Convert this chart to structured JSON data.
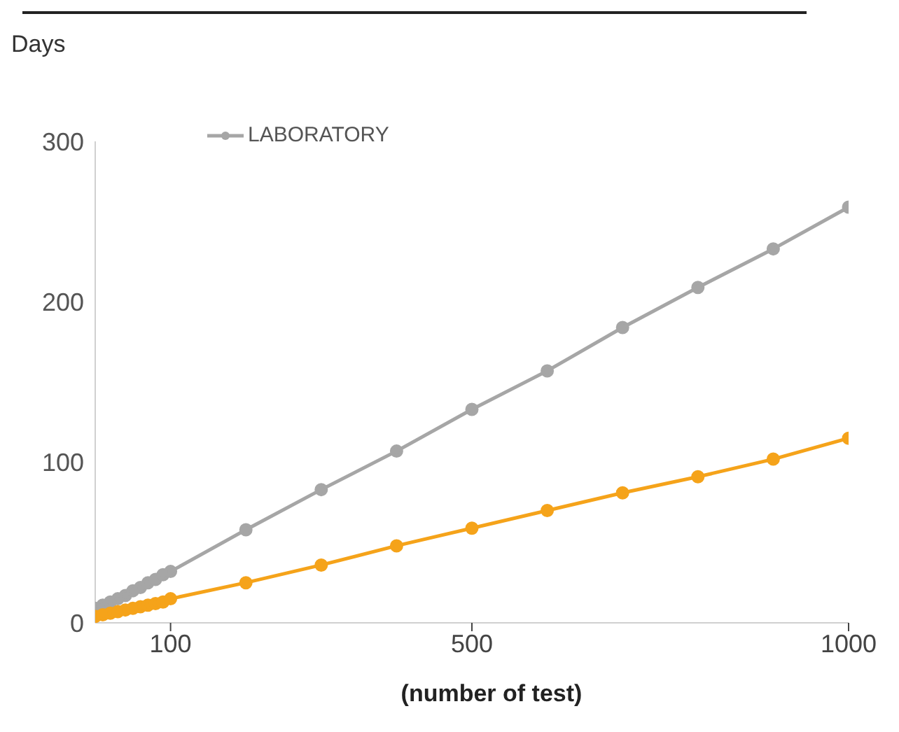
{
  "chart_data": {
    "type": "line",
    "ylabel": "Days",
    "xlabel": "(number of test)",
    "xlim": [
      0,
      1000
    ],
    "xticks": [
      100,
      500,
      1000
    ],
    "ylim": [
      0,
      300
    ],
    "yticks": [
      0,
      100,
      200,
      300
    ],
    "grid": false,
    "legend": "top left",
    "marker": "circle",
    "line_style": "solid",
    "x": [
      0,
      10,
      20,
      30,
      40,
      50,
      60,
      70,
      80,
      90,
      100,
      200,
      300,
      400,
      500,
      600,
      700,
      800,
      900,
      1000
    ],
    "series": [
      {
        "name": "LABORATORY",
        "color": "#a6a6a6",
        "values": [
          9,
          11,
          13,
          15,
          17,
          20,
          22,
          25,
          27,
          30,
          32,
          58,
          83,
          107,
          133,
          157,
          184,
          209,
          233,
          259
        ]
      },
      {
        "color": "#f5a31a",
        "values": [
          4,
          5,
          6,
          7,
          8,
          9,
          10,
          11,
          12,
          13,
          15,
          25,
          36,
          48,
          59,
          70,
          81,
          91,
          102,
          115
        ]
      }
    ]
  }
}
